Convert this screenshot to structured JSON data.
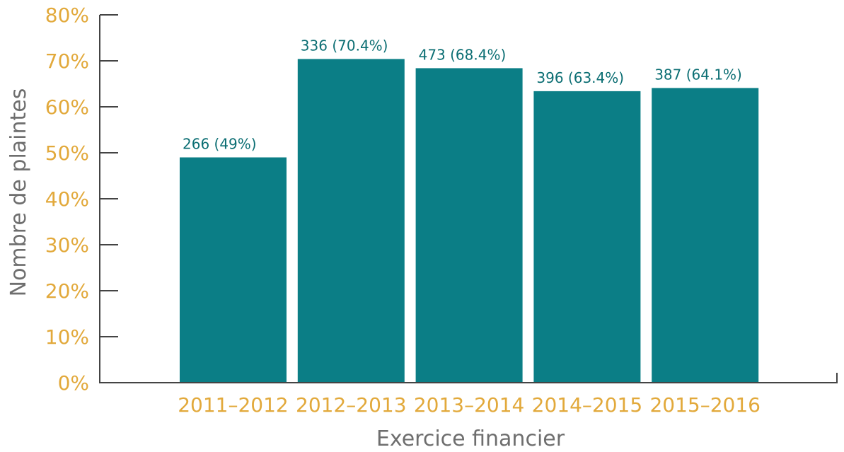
{
  "chart_data": {
    "type": "bar",
    "categories": [
      "2011–2012",
      "2012–2013",
      "2013–2014",
      "2014–2015",
      "2015–2016"
    ],
    "values": [
      49,
      70.4,
      68.4,
      63.4,
      64.1
    ],
    "data_labels": [
      "266 (49%)",
      "336 (70.4%)",
      "473 (68.4%)",
      "396 (63.4%)",
      "387 (64.1%)"
    ],
    "yticks": [
      "0%",
      "10%",
      "20%",
      "30%",
      "40%",
      "50%",
      "60%",
      "70%",
      "80%"
    ],
    "ylim": [
      0,
      80
    ],
    "xlabel": "Exercice financier",
    "ylabel": "Nombre de plaintes",
    "grid": false,
    "colors": {
      "bar": "#0B7E86",
      "data_label": "#0B6E73",
      "tick_label": "#E2A93B",
      "axis_title": "#6E6E6E"
    }
  }
}
